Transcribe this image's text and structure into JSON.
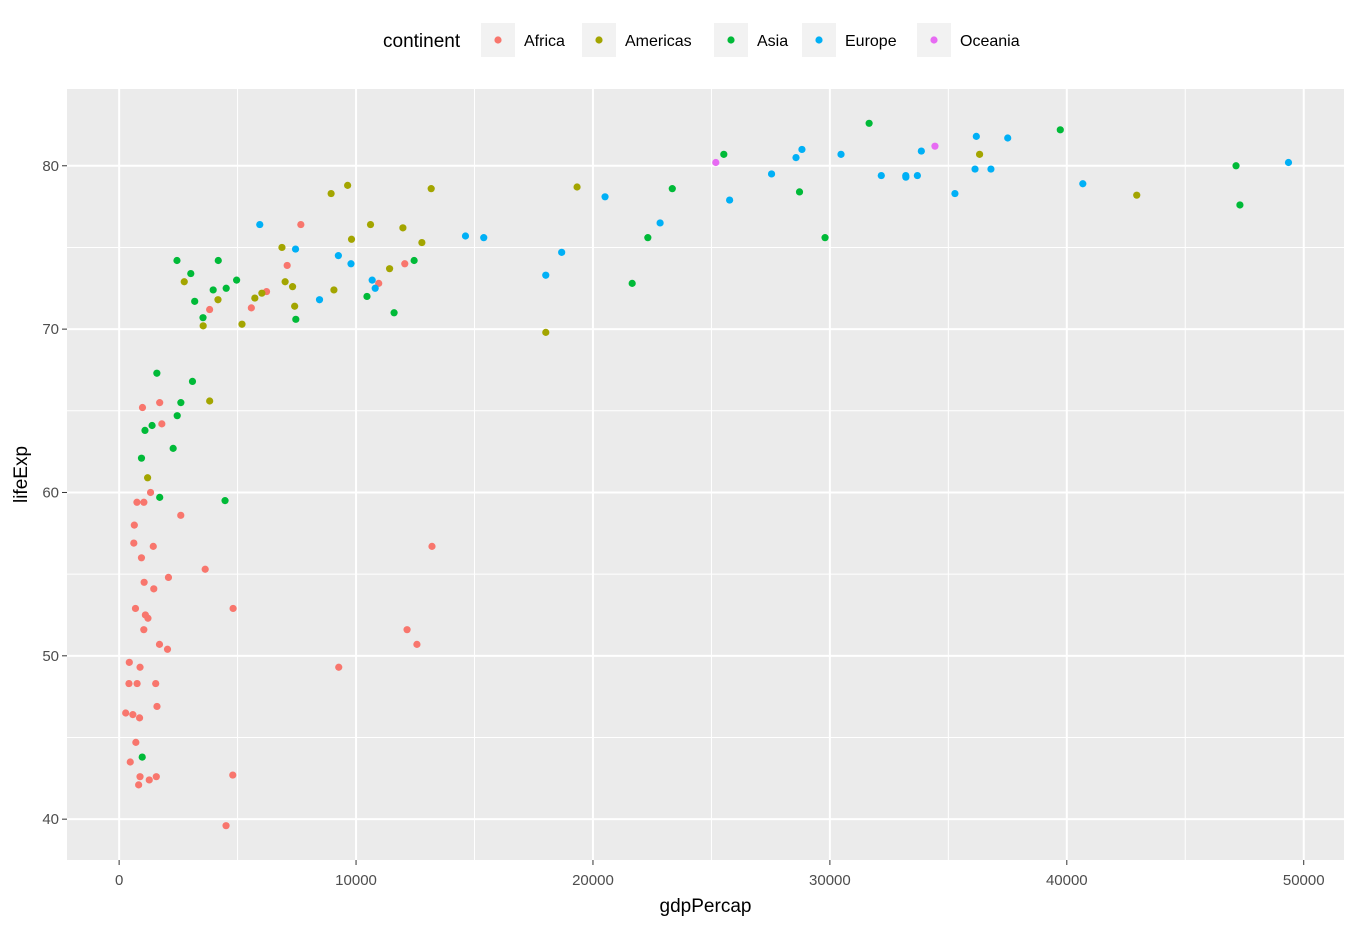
{
  "chart_data": {
    "type": "scatter",
    "xlabel": "gdpPercap",
    "ylabel": "lifeExp",
    "xlim": [
      -2200,
      51700
    ],
    "ylim": [
      37.5,
      84.7
    ],
    "x_ticks_major": [
      0,
      10000,
      20000,
      30000,
      40000,
      50000
    ],
    "x_tick_labels": [
      "0",
      "10000",
      "20000",
      "30000",
      "40000",
      "50000"
    ],
    "y_ticks_major": [
      40,
      50,
      60,
      70,
      80
    ],
    "y_tick_labels": [
      "40",
      "50",
      "60",
      "70",
      "80"
    ],
    "x_ticks_minor": [
      5000,
      15000,
      25000,
      35000,
      45000
    ],
    "y_ticks_minor": [
      45,
      55,
      65,
      75
    ],
    "grid": true,
    "panel_color": "#ebebeb",
    "legend": {
      "title": "continent",
      "position": "top"
    },
    "series": [
      {
        "name": "Africa",
        "color": "#F8766D",
        "points": [
          [
            6223,
            72.3
          ],
          [
            4797,
            42.7
          ],
          [
            1441,
            56.7
          ],
          [
            12570,
            50.7
          ],
          [
            1217,
            52.3
          ],
          [
            430,
            49.6
          ],
          [
            2042,
            50.4
          ],
          [
            706,
            44.7
          ],
          [
            1704,
            50.7
          ],
          [
            986,
            65.2
          ],
          [
            277,
            46.5
          ],
          [
            3633,
            55.3
          ],
          [
            1544,
            48.3
          ],
          [
            2082,
            54.8
          ],
          [
            5581,
            71.3
          ],
          [
            12154,
            51.6
          ],
          [
            641,
            58.0
          ],
          [
            690,
            52.9
          ],
          [
            13206,
            56.7
          ],
          [
            752,
            59.4
          ],
          [
            1327,
            60.0
          ],
          [
            943,
            56.0
          ],
          [
            579,
            46.4
          ],
          [
            1463,
            54.1
          ],
          [
            1569,
            42.6
          ],
          [
            415,
            48.3
          ],
          [
            12057,
            74.0
          ],
          [
            1045,
            59.4
          ],
          [
            759,
            48.3
          ],
          [
            1042,
            51.6
          ],
          [
            1803,
            64.2
          ],
          [
            10957,
            72.8
          ],
          [
            3820,
            71.2
          ],
          [
            824,
            42.1
          ],
          [
            4811,
            52.9
          ],
          [
            620,
            56.9
          ],
          [
            1598,
            46.9
          ],
          [
            863,
            46.2
          ],
          [
            1712,
            65.5
          ],
          [
            882,
            42.6
          ],
          [
            7093,
            73.9
          ],
          [
            1056,
            54.5
          ],
          [
            2602,
            58.6
          ],
          [
            4513,
            39.6
          ],
          [
            7670,
            76.4
          ],
          [
            1108,
            52.5
          ],
          [
            883,
            49.3
          ],
          [
            9270,
            49.3
          ],
          [
            470,
            43.5
          ],
          [
            1272,
            42.4
          ]
        ]
      },
      {
        "name": "Americas",
        "color": "#A3A500",
        "points": [
          [
            12779,
            75.3
          ],
          [
            3822,
            65.6
          ],
          [
            9066,
            72.4
          ],
          [
            36319,
            80.7
          ],
          [
            13172,
            78.6
          ],
          [
            7007,
            72.9
          ],
          [
            9645,
            78.8
          ],
          [
            8948,
            78.3
          ],
          [
            6025,
            72.2
          ],
          [
            6873,
            75.0
          ],
          [
            5728,
            71.9
          ],
          [
            5186,
            70.3
          ],
          [
            1202,
            60.9
          ],
          [
            3548,
            70.2
          ],
          [
            7321,
            72.6
          ],
          [
            11978,
            76.2
          ],
          [
            2749,
            72.9
          ],
          [
            9809,
            75.5
          ],
          [
            4173,
            71.8
          ],
          [
            7409,
            71.4
          ],
          [
            19329,
            78.7
          ],
          [
            18009,
            69.8
          ],
          [
            42952,
            78.2
          ],
          [
            10611,
            76.4
          ],
          [
            11416,
            73.7
          ]
        ]
      },
      {
        "name": "Asia",
        "color": "#00BA38",
        "points": [
          [
            975,
            43.8
          ],
          [
            29796,
            75.6
          ],
          [
            1391,
            64.1
          ],
          [
            1713,
            59.7
          ],
          [
            4959,
            73.0
          ],
          [
            39725,
            82.2
          ],
          [
            2452,
            64.7
          ],
          [
            3541,
            70.7
          ],
          [
            11606,
            71.0
          ],
          [
            4471,
            59.5
          ],
          [
            25523,
            80.7
          ],
          [
            31656,
            82.6
          ],
          [
            4519,
            72.5
          ],
          [
            1593,
            67.3
          ],
          [
            23348,
            78.6
          ],
          [
            47307,
            77.6
          ],
          [
            10461,
            72.0
          ],
          [
            12452,
            74.2
          ],
          [
            3096,
            66.8
          ],
          [
            944,
            62.1
          ],
          [
            1091,
            63.8
          ],
          [
            22316,
            75.6
          ],
          [
            2606,
            65.5
          ],
          [
            3190,
            71.7
          ],
          [
            21655,
            72.8
          ],
          [
            47143,
            80.0
          ],
          [
            3970,
            72.4
          ],
          [
            4185,
            74.2
          ],
          [
            28718,
            78.4
          ],
          [
            7458,
            70.6
          ],
          [
            2442,
            74.2
          ],
          [
            3025,
            73.4
          ],
          [
            2281,
            62.7
          ]
        ]
      },
      {
        "name": "Europe",
        "color": "#00B0F6",
        "points": [
          [
            5937,
            76.4
          ],
          [
            36126,
            79.8
          ],
          [
            33693,
            79.4
          ],
          [
            7446,
            74.9
          ],
          [
            10681,
            73.0
          ],
          [
            14619,
            75.7
          ],
          [
            22834,
            76.5
          ],
          [
            35278,
            78.3
          ],
          [
            33207,
            79.3
          ],
          [
            30470,
            80.7
          ],
          [
            32170,
            79.4
          ],
          [
            27538,
            79.5
          ],
          [
            18008,
            73.3
          ],
          [
            36181,
            81.8
          ],
          [
            40676,
            78.9
          ],
          [
            28570,
            80.5
          ],
          [
            9254,
            74.5
          ],
          [
            36798,
            79.8
          ],
          [
            49357,
            80.2
          ],
          [
            15390,
            75.6
          ],
          [
            20510,
            78.1
          ],
          [
            10808,
            72.5
          ],
          [
            9787,
            74.0
          ],
          [
            18679,
            74.7
          ],
          [
            25768,
            77.9
          ],
          [
            28821,
            81.0
          ],
          [
            33860,
            80.9
          ],
          [
            37506,
            81.7
          ],
          [
            8458,
            71.8
          ],
          [
            33203,
            79.4
          ]
        ]
      },
      {
        "name": "Oceania",
        "color": "#E76BF3",
        "points": [
          [
            34435,
            81.2
          ],
          [
            25185,
            80.2
          ]
        ]
      }
    ]
  }
}
